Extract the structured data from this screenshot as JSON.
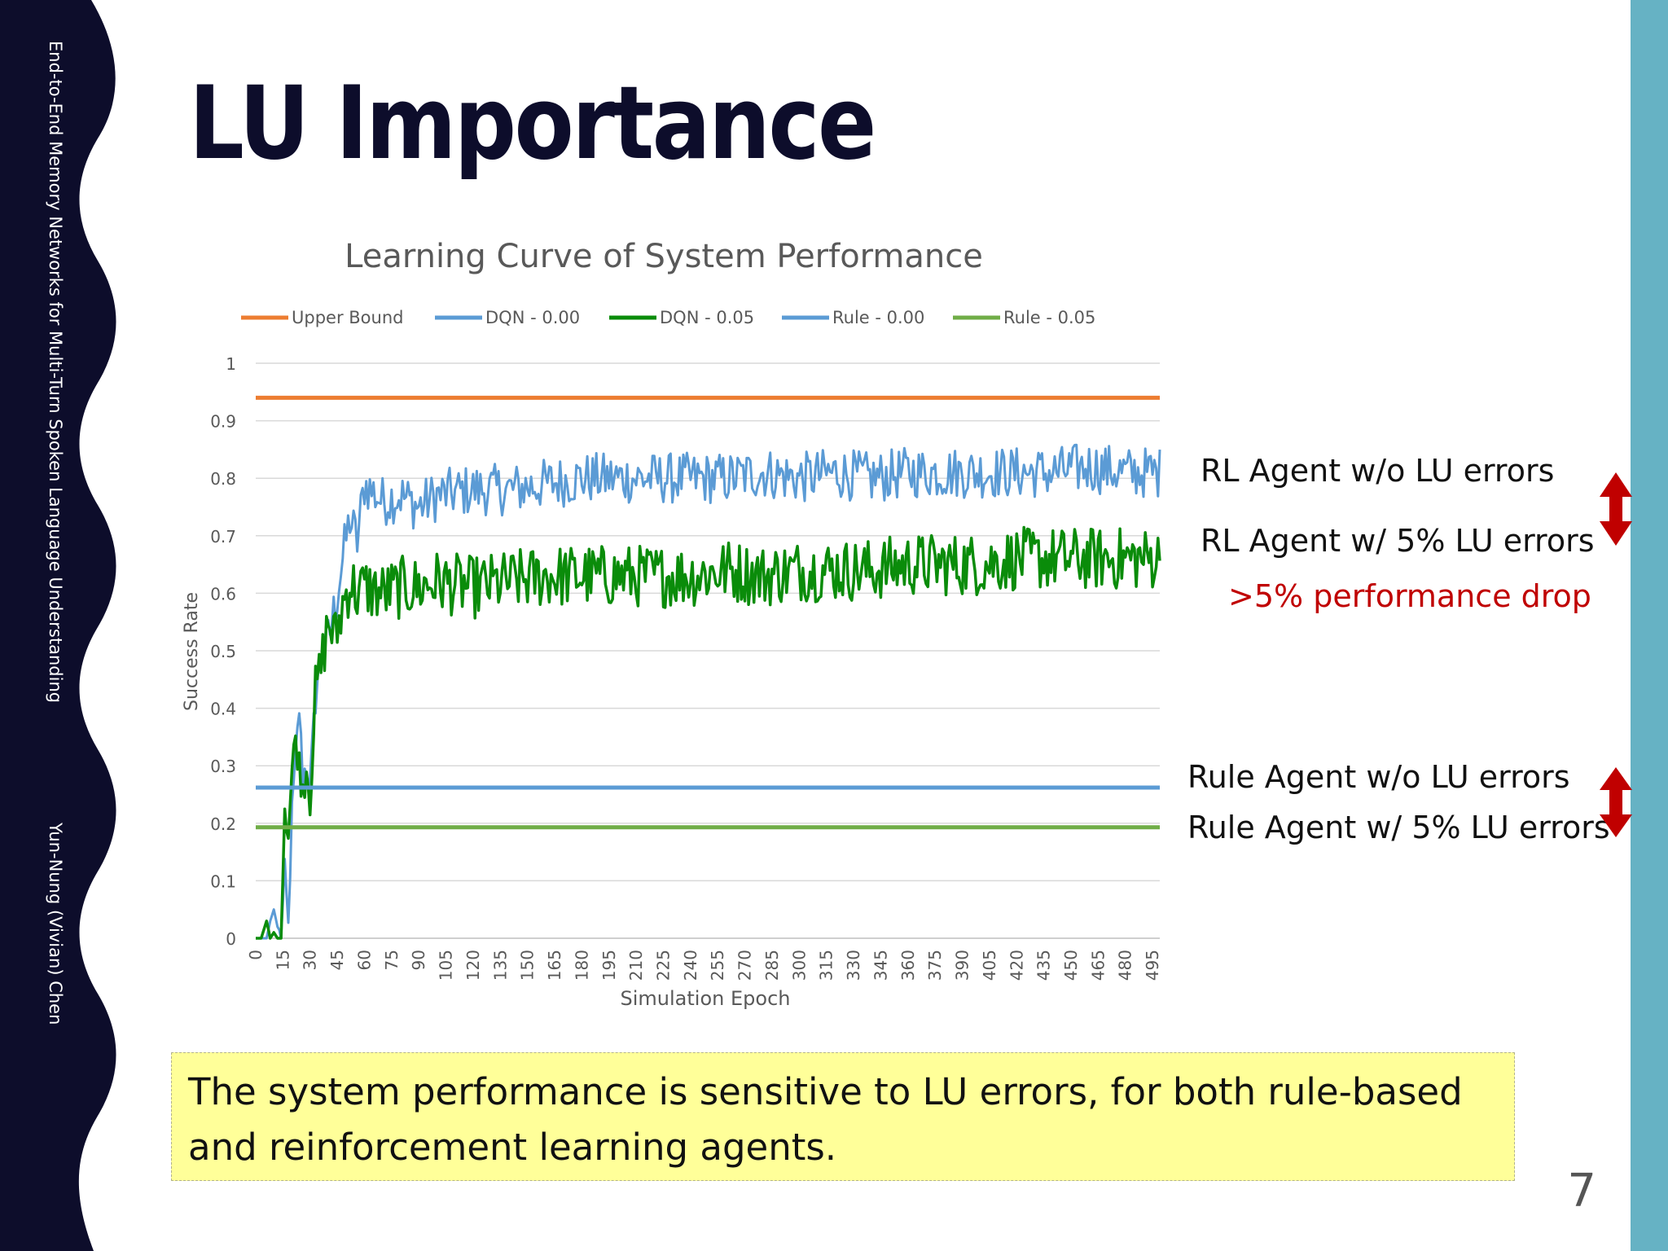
{
  "slide": {
    "sidebar_text": "End-to-End Memory Networks for Multi-Turn Spoken Language Understanding",
    "sidebar_author": "Yun-Nung (Vivian) Chen",
    "title": "LU Importance",
    "page_number": "7",
    "conclusion": "The system performance is sensitive to LU errors, for both rule-based and reinforcement learning agents."
  },
  "annotations": {
    "rl_without": "RL Agent w/o LU errors",
    "rl_with": "RL Agent w/ 5% LU errors",
    "drop": ">5% performance drop",
    "rule_without": "Rule Agent w/o LU errors",
    "rule_with": "Rule Agent w/ 5% LU errors"
  },
  "colors": {
    "sidebar": "#0d0d2b",
    "right_bar": "#66b2c4",
    "arrow": "#c00000",
    "conclusion_bg": "#ffff99"
  },
  "chart_data": {
    "type": "line",
    "title": "Learning Curve of System Performance",
    "xlabel": "Simulation Epoch",
    "ylabel": "Success Rate",
    "ylim": [
      0,
      1
    ],
    "xlim": [
      0,
      499
    ],
    "x_ticks": [
      "0",
      "15",
      "30",
      "45",
      "60",
      "75",
      "90",
      "105",
      "120",
      "135",
      "150",
      "165",
      "180",
      "195",
      "210",
      "225",
      "240",
      "255",
      "270",
      "285",
      "300",
      "315",
      "330",
      "345",
      "360",
      "375",
      "390",
      "405",
      "420",
      "435",
      "450",
      "465",
      "480",
      "495"
    ],
    "y_ticks": [
      "0",
      "0.1",
      "0.2",
      "0.3",
      "0.4",
      "0.5",
      "0.6",
      "0.7",
      "0.8",
      "0.9",
      "1"
    ],
    "grid": "horizontal",
    "legend": "top",
    "series": [
      {
        "name": "Upper Bound",
        "kind": "constant",
        "value": 0.94,
        "color": "#ed7d31"
      },
      {
        "name": "DQN - 0.00",
        "kind": "curve",
        "color": "#5b9bd5",
        "x": [
          0,
          3,
          6,
          8,
          10,
          12,
          14,
          16,
          18,
          20,
          22,
          24,
          26,
          28,
          30,
          33,
          36,
          40,
          44,
          48,
          52,
          56,
          60,
          70,
          80,
          90,
          100,
          120,
          140,
          160,
          180,
          200,
          220,
          240,
          260,
          280,
          300,
          320,
          340,
          360,
          380,
          400,
          420,
          440,
          460,
          480,
          499
        ],
        "y": [
          0,
          0,
          0,
          0.03,
          0.05,
          0.02,
          0.0,
          0.12,
          0.02,
          0.22,
          0.31,
          0.4,
          0.28,
          0.3,
          0.26,
          0.42,
          0.5,
          0.52,
          0.58,
          0.66,
          0.73,
          0.69,
          0.79,
          0.76,
          0.77,
          0.75,
          0.77,
          0.78,
          0.78,
          0.79,
          0.8,
          0.8,
          0.8,
          0.8,
          0.8,
          0.81,
          0.8,
          0.81,
          0.8,
          0.81,
          0.81,
          0.81,
          0.81,
          0.81,
          0.82,
          0.81,
          0.81
        ]
      },
      {
        "name": "DQN - 0.05",
        "kind": "curve",
        "color": "#0a8c0a",
        "x": [
          0,
          3,
          6,
          8,
          10,
          12,
          14,
          16,
          18,
          20,
          22,
          24,
          26,
          28,
          30,
          33,
          36,
          40,
          44,
          48,
          52,
          56,
          60,
          70,
          80,
          90,
          100,
          120,
          140,
          160,
          180,
          200,
          220,
          240,
          260,
          280,
          300,
          320,
          340,
          360,
          380,
          400,
          420,
          440,
          460,
          480,
          499
        ],
        "y": [
          0,
          0,
          0.03,
          0.0,
          0.01,
          0.0,
          0.0,
          0.23,
          0.18,
          0.29,
          0.35,
          0.3,
          0.26,
          0.3,
          0.25,
          0.43,
          0.47,
          0.55,
          0.52,
          0.58,
          0.62,
          0.6,
          0.61,
          0.6,
          0.61,
          0.61,
          0.62,
          0.61,
          0.62,
          0.63,
          0.63,
          0.63,
          0.63,
          0.63,
          0.64,
          0.63,
          0.64,
          0.64,
          0.64,
          0.65,
          0.65,
          0.65,
          0.66,
          0.66,
          0.66,
          0.66,
          0.66
        ]
      },
      {
        "name": "Rule - 0.00",
        "kind": "constant",
        "value": 0.262,
        "color": "#5b9bd5"
      },
      {
        "name": "Rule - 0.05",
        "kind": "constant",
        "value": 0.193,
        "color": "#70ad47"
      }
    ]
  }
}
